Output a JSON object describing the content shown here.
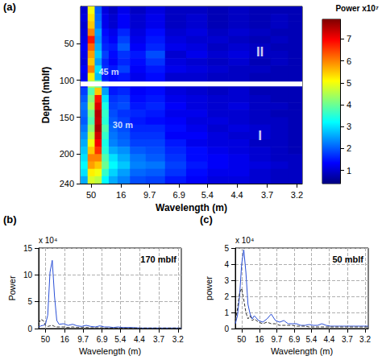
{
  "chart_data": [
    {
      "type": "heatmap",
      "panel_label": "(a)",
      "xlabel": "Wavelength (m)",
      "ylabel": "Depth (mblf)",
      "xlim": [
        0.005,
        0.32
      ],
      "xticks": [
        {
          "value": 0.02,
          "label": "50"
        },
        {
          "value": 0.0625,
          "label": "16"
        },
        {
          "value": 0.10309,
          "label": "9.7"
        },
        {
          "value": 0.14493,
          "label": "6.9"
        },
        {
          "value": 0.18519,
          "label": "5.4"
        },
        {
          "value": 0.22727,
          "label": "4.4"
        },
        {
          "value": 0.27027,
          "label": "3.7"
        },
        {
          "value": 0.3125,
          "label": "3.2"
        }
      ],
      "ylim": [
        0,
        240
      ],
      "yticks": [
        50,
        100,
        150,
        200,
        240
      ],
      "x": [
        0.01,
        0.02,
        0.03,
        0.04,
        0.05,
        0.065,
        0.085,
        0.11,
        0.14,
        0.17,
        0.2,
        0.23,
        0.26,
        0.29,
        0.31
      ],
      "y": [
        5,
        15,
        25,
        35,
        45,
        55,
        65,
        75,
        85,
        95,
        105,
        115,
        125,
        135,
        145,
        155,
        165,
        175,
        185,
        195,
        205,
        215,
        225,
        235
      ],
      "values": [
        [
          1.0,
          5.0,
          2.0,
          1.1,
          0.9,
          1.2,
          0.9,
          1.1,
          0.9,
          0.9,
          0.8,
          0.9,
          0.8,
          0.8,
          0.8
        ],
        [
          1.1,
          5.3,
          2.1,
          1.2,
          1.0,
          1.3,
          1.0,
          1.2,
          0.9,
          1.0,
          0.8,
          0.9,
          0.8,
          0.9,
          0.8
        ],
        [
          1.0,
          5.5,
          2.2,
          1.2,
          1.0,
          1.3,
          1.0,
          1.2,
          0.9,
          1.0,
          0.8,
          0.9,
          0.8,
          0.9,
          0.8
        ],
        [
          1.1,
          6.0,
          2.5,
          1.4,
          1.2,
          1.6,
          1.1,
          1.4,
          1.0,
          1.1,
          0.9,
          1.0,
          0.9,
          0.8,
          0.8
        ],
        [
          1.2,
          6.8,
          2.4,
          1.5,
          1.3,
          1.8,
          1.2,
          1.5,
          1.1,
          1.0,
          1.0,
          0.9,
          0.8,
          0.9,
          0.8
        ],
        [
          1.3,
          6.2,
          2.6,
          1.6,
          1.5,
          2.0,
          1.3,
          1.6,
          1.2,
          1.1,
          0.9,
          1.0,
          0.9,
          0.8,
          0.8
        ],
        [
          1.2,
          5.8,
          2.8,
          1.8,
          1.4,
          1.7,
          1.5,
          1.9,
          1.0,
          1.2,
          1.0,
          1.1,
          0.9,
          0.9,
          0.8
        ],
        [
          1.1,
          5.5,
          2.5,
          1.6,
          1.3,
          1.6,
          1.4,
          1.7,
          1.1,
          1.0,
          0.9,
          1.0,
          0.8,
          0.9,
          0.8
        ],
        [
          1.3,
          6.0,
          3.0,
          1.7,
          1.5,
          1.8,
          1.3,
          1.5,
          1.2,
          1.1,
          1.0,
          0.9,
          0.9,
          0.8,
          0.8
        ],
        [
          1.2,
          5.2,
          2.7,
          1.5,
          1.4,
          1.5,
          1.2,
          1.4,
          1.0,
          1.0,
          0.9,
          0.9,
          0.8,
          0.8,
          0.8
        ],
        [
          1.5,
          4.5,
          4.0,
          1.8,
          1.4,
          1.4,
          1.2,
          1.3,
          1.0,
          1.0,
          0.9,
          0.9,
          0.8,
          0.8,
          0.8
        ],
        [
          1.8,
          3.8,
          5.5,
          2.5,
          1.5,
          1.6,
          1.3,
          1.4,
          1.1,
          1.0,
          0.9,
          1.0,
          0.8,
          0.8,
          0.8
        ],
        [
          2.0,
          4.2,
          6.8,
          3.0,
          1.7,
          1.8,
          1.4,
          1.5,
          1.2,
          1.1,
          1.0,
          1.0,
          0.9,
          0.8,
          0.8
        ],
        [
          2.2,
          4.5,
          7.2,
          3.4,
          1.8,
          1.9,
          1.5,
          1.6,
          1.3,
          1.1,
          1.0,
          1.1,
          0.9,
          0.9,
          0.8
        ],
        [
          2.1,
          4.0,
          7.5,
          3.6,
          1.9,
          1.7,
          1.6,
          1.5,
          1.2,
          1.2,
          1.0,
          1.0,
          0.9,
          0.8,
          0.8
        ],
        [
          2.0,
          3.8,
          7.4,
          3.5,
          2.0,
          1.8,
          1.5,
          1.4,
          1.3,
          1.1,
          1.1,
          1.0,
          0.9,
          0.9,
          0.8
        ],
        [
          2.2,
          4.2,
          7.6,
          3.8,
          2.1,
          1.9,
          1.6,
          1.6,
          1.4,
          1.2,
          1.0,
          1.1,
          1.0,
          0.9,
          0.8
        ],
        [
          2.4,
          4.6,
          7.3,
          3.6,
          2.2,
          2.0,
          1.7,
          1.7,
          1.3,
          1.3,
          1.1,
          1.0,
          1.0,
          0.9,
          0.8
        ],
        [
          2.6,
          5.0,
          7.0,
          3.4,
          2.3,
          2.1,
          1.8,
          1.8,
          1.5,
          1.2,
          1.1,
          1.1,
          0.9,
          0.9,
          0.8
        ],
        [
          2.8,
          5.5,
          6.6,
          3.5,
          2.6,
          2.4,
          2.0,
          1.9,
          1.6,
          1.4,
          1.2,
          1.1,
          1.0,
          0.9,
          0.8
        ],
        [
          3.0,
          6.0,
          6.0,
          3.8,
          3.0,
          2.6,
          2.2,
          2.0,
          1.7,
          1.4,
          1.3,
          1.2,
          1.0,
          0.9,
          0.9
        ],
        [
          3.2,
          5.8,
          5.5,
          4.0,
          3.2,
          2.8,
          2.3,
          2.2,
          1.8,
          1.5,
          1.3,
          1.2,
          1.1,
          1.0,
          0.9
        ],
        [
          3.0,
          5.2,
          5.0,
          3.6,
          2.9,
          2.5,
          2.1,
          2.0,
          1.7,
          1.4,
          1.2,
          1.2,
          1.0,
          0.9,
          0.9
        ],
        [
          2.6,
          4.8,
          4.6,
          3.2,
          2.6,
          2.3,
          1.9,
          1.8,
          1.5,
          1.3,
          1.1,
          1.1,
          1.0,
          0.9,
          0.9
        ]
      ],
      "colorbar_label": "Power x10⁷",
      "clim": [
        0.4,
        7.9
      ],
      "cticks": [
        1,
        2,
        3,
        4,
        5,
        6,
        7
      ],
      "boundary": 105,
      "annotations": [
        {
          "text": "45 m",
          "x": 0.045,
          "y": 88
        },
        {
          "text": "30 m",
          "x": 0.065,
          "y": 160
        },
        {
          "text": "II",
          "x": 0.26,
          "y": 62
        },
        {
          "text": "I",
          "x": 0.26,
          "y": 175
        }
      ]
    },
    {
      "type": "line",
      "panel_label": "(b)",
      "title": "170 mblf",
      "xlabel": "Wavelength (m)",
      "ylabel": "Power",
      "yscale_label": "x 10⁴",
      "xlim": [
        0.005,
        0.32
      ],
      "xticks": [
        {
          "value": 0.02,
          "label": "50"
        },
        {
          "value": 0.0625,
          "label": "16"
        },
        {
          "value": 0.10309,
          "label": "9.7"
        },
        {
          "value": 0.14493,
          "label": "6.9"
        },
        {
          "value": 0.18519,
          "label": "5.4"
        },
        {
          "value": 0.22727,
          "label": "4.4"
        },
        {
          "value": 0.27027,
          "label": "3.7"
        },
        {
          "value": 0.3125,
          "label": "3.2"
        }
      ],
      "ylim": [
        0,
        15
      ],
      "yticks": [
        0,
        5,
        10,
        15
      ],
      "grid": true,
      "x": [
        0.005,
        0.01,
        0.015,
        0.02,
        0.025,
        0.03,
        0.035,
        0.04,
        0.045,
        0.05,
        0.06,
        0.07,
        0.08,
        0.09,
        0.1,
        0.11,
        0.12,
        0.13,
        0.14,
        0.15,
        0.16,
        0.17,
        0.18,
        0.19,
        0.2,
        0.21,
        0.22,
        0.23,
        0.24,
        0.25,
        0.26,
        0.27,
        0.28,
        0.29,
        0.3,
        0.31,
        0.32
      ],
      "series": [
        {
          "color": "#2a4fd6",
          "line_style": "solid",
          "values": [
            0.3,
            0.5,
            0.6,
            0.8,
            2.5,
            10.5,
            12.7,
            6.0,
            1.5,
            0.8,
            0.9,
            0.6,
            0.8,
            0.5,
            0.4,
            0.6,
            0.4,
            0.3,
            0.5,
            0.3,
            0.3,
            0.2,
            0.3,
            0.2,
            0.2,
            0.2,
            0.15,
            0.1,
            0.1,
            0.1,
            0.1,
            0.1,
            0.1,
            0.1,
            0.1,
            0.1,
            0.1
          ]
        },
        {
          "color": "#333333",
          "line_style": "dashed",
          "values": [
            1.0,
            1.7,
            1.5,
            0.6,
            0.4,
            0.5,
            0.6,
            0.4,
            0.3,
            0.3,
            0.3,
            0.2,
            0.3,
            0.2,
            0.2,
            0.2,
            0.15,
            0.15,
            0.15,
            0.1,
            0.1,
            0.1,
            0.1,
            0.1,
            0.1,
            0.1,
            0.1,
            0.1,
            0.1,
            0.1,
            0.1,
            0.1,
            0.1,
            0.1,
            0.1,
            0.1,
            0.1
          ]
        }
      ]
    },
    {
      "type": "line",
      "panel_label": "(c)",
      "title": "50 mblf",
      "xlabel": "Wavelength (m)",
      "ylabel": "power",
      "yscale_label": "x 10⁴",
      "xlim": [
        0.005,
        0.32
      ],
      "xticks": [
        {
          "value": 0.02,
          "label": "50"
        },
        {
          "value": 0.0625,
          "label": "16"
        },
        {
          "value": 0.10309,
          "label": "9.7"
        },
        {
          "value": 0.14493,
          "label": "6.9"
        },
        {
          "value": 0.18519,
          "label": "5.4"
        },
        {
          "value": 0.22727,
          "label": "4.4"
        },
        {
          "value": 0.27027,
          "label": "3.7"
        },
        {
          "value": 0.3125,
          "label": "3.2"
        }
      ],
      "ylim": [
        0,
        5
      ],
      "yticks": [
        0,
        1,
        2,
        3,
        4,
        5
      ],
      "grid": true,
      "x": [
        0.005,
        0.01,
        0.015,
        0.02,
        0.025,
        0.03,
        0.035,
        0.04,
        0.045,
        0.05,
        0.06,
        0.07,
        0.08,
        0.09,
        0.1,
        0.11,
        0.12,
        0.13,
        0.14,
        0.15,
        0.16,
        0.17,
        0.18,
        0.19,
        0.2,
        0.21,
        0.22,
        0.23,
        0.24,
        0.25,
        0.26,
        0.27,
        0.28,
        0.29,
        0.3,
        0.31,
        0.32
      ],
      "series": [
        {
          "color": "#2a4fd6",
          "line_style": "solid",
          "values": [
            0.3,
            0.8,
            2.0,
            4.0,
            4.9,
            3.5,
            1.5,
            0.9,
            0.6,
            0.8,
            0.5,
            0.4,
            0.6,
            0.9,
            0.5,
            0.4,
            0.5,
            0.3,
            0.3,
            0.3,
            0.2,
            0.2,
            0.25,
            0.2,
            0.2,
            0.3,
            0.2,
            0.15,
            0.15,
            0.15,
            0.15,
            0.15,
            0.15,
            0.15,
            0.15,
            0.15,
            0.15
          ]
        },
        {
          "color": "#333333",
          "line_style": "dashed",
          "values": [
            0.5,
            1.2,
            2.2,
            2.5,
            1.8,
            1.0,
            0.6,
            0.8,
            0.5,
            0.6,
            0.4,
            0.3,
            0.4,
            0.3,
            0.3,
            0.2,
            0.2,
            0.2,
            0.2,
            0.15,
            0.15,
            0.15,
            0.1,
            0.1,
            0.1,
            0.1,
            0.1,
            0.1,
            0.1,
            0.1,
            0.1,
            0.1,
            0.1,
            0.1,
            0.1,
            0.1,
            0.1
          ]
        }
      ]
    }
  ]
}
